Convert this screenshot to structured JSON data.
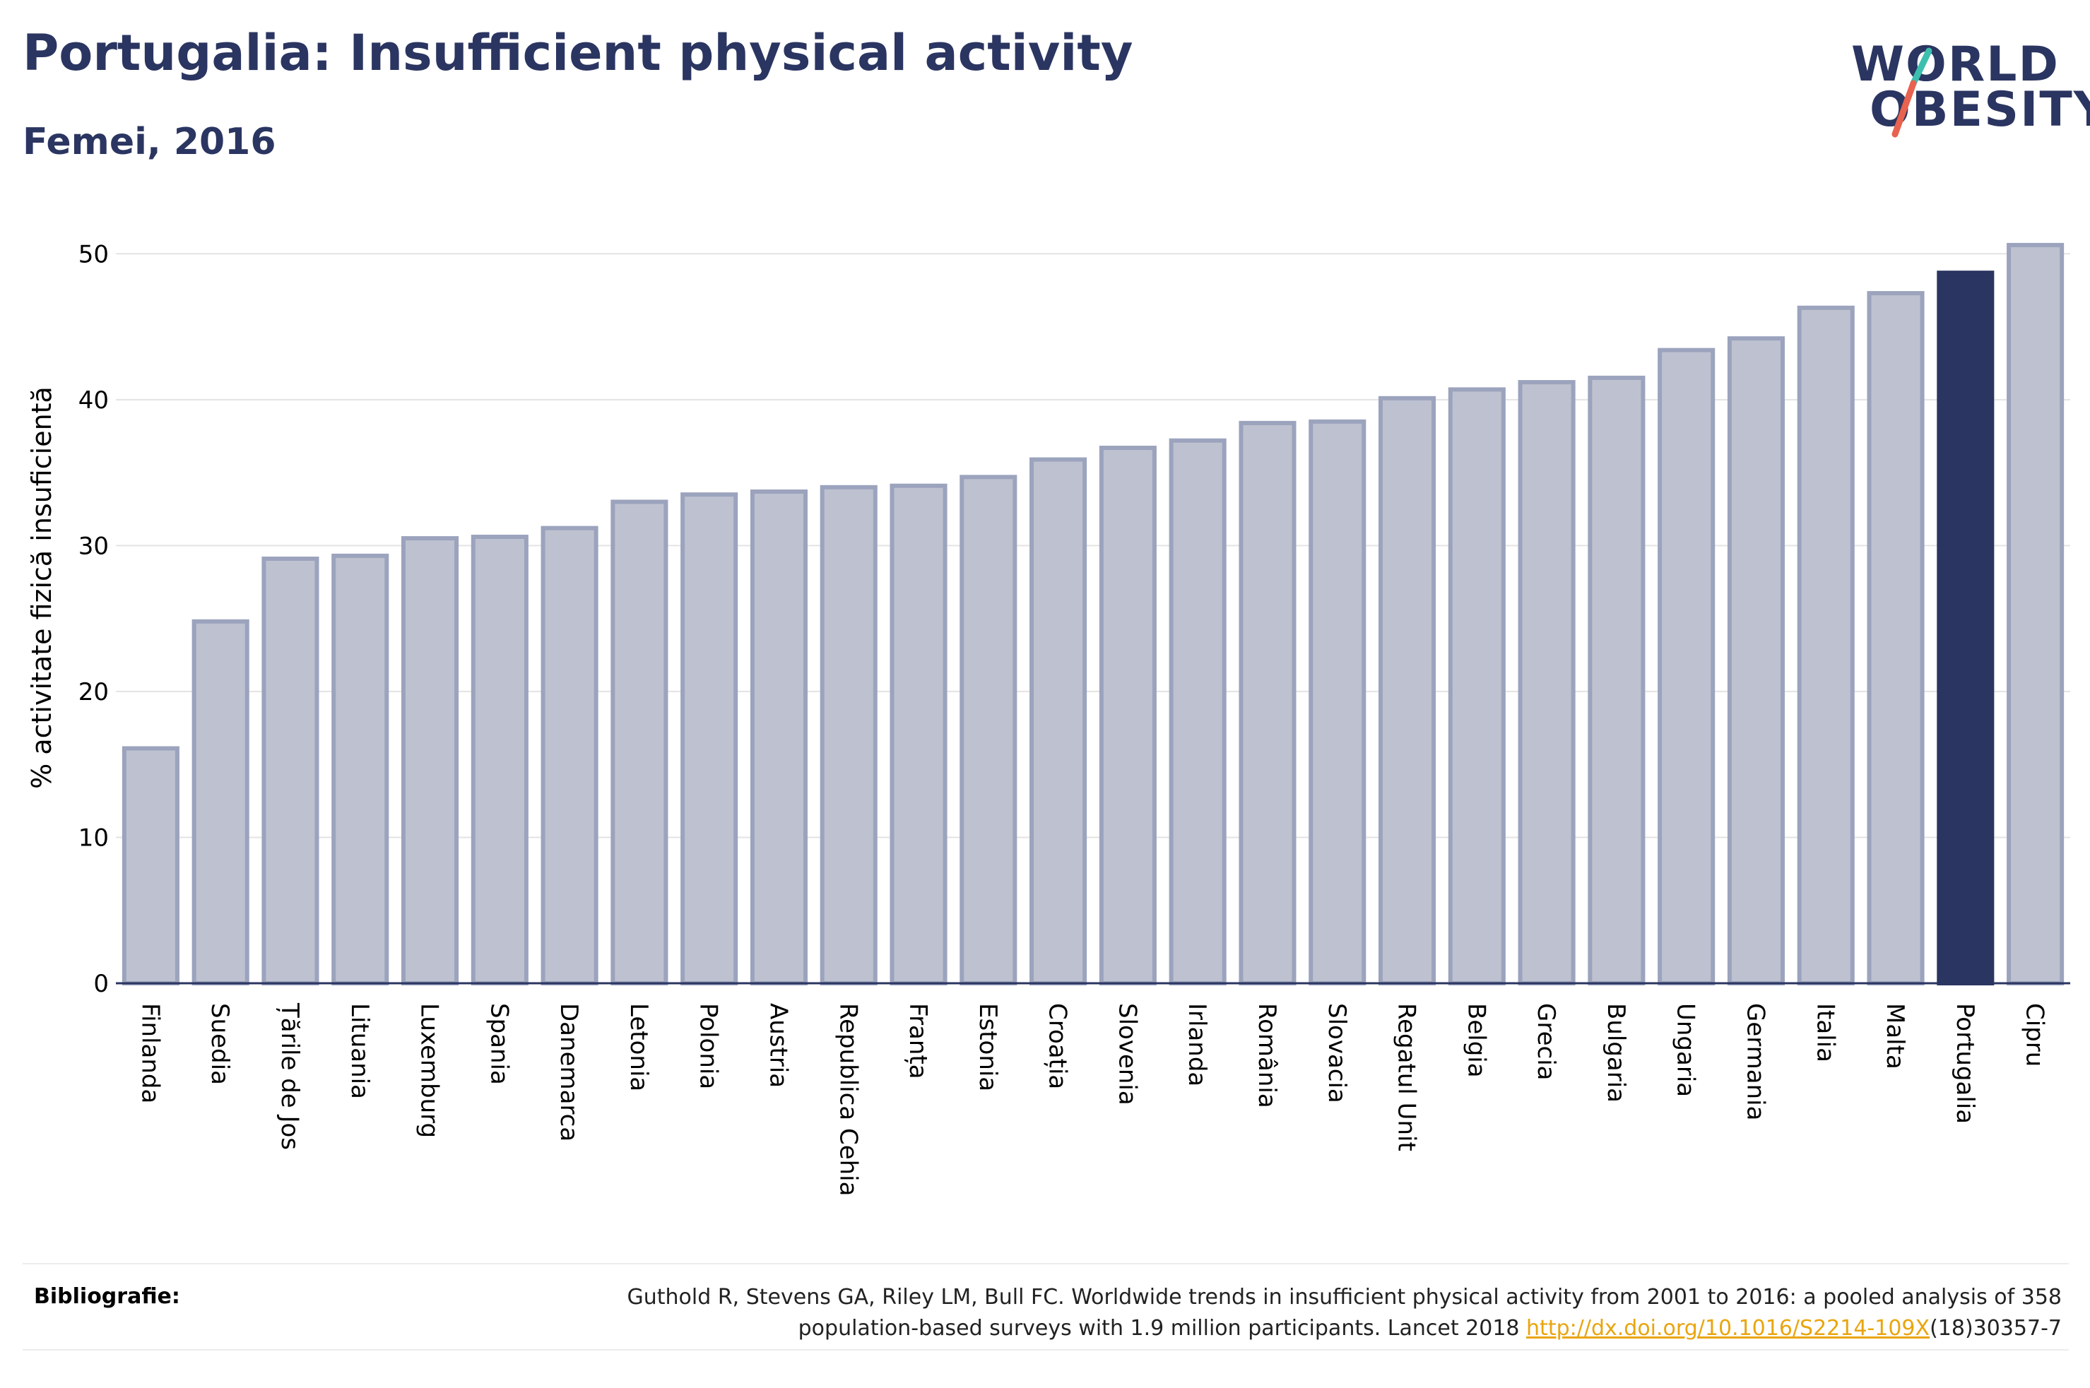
{
  "title": "Portugalia: Insufficient physical activity",
  "subtitle": "Femei, 2016",
  "logo": {
    "line1": "WORLD",
    "line2": "OBESITY",
    "accent_colors": [
      "#3cbfae",
      "#e8624f"
    ]
  },
  "chart_data": {
    "type": "bar",
    "ylabel": "% activitate fizică insuficientă",
    "xlabel": "",
    "ylim": [
      0,
      52
    ],
    "yticks": [
      0,
      10,
      20,
      30,
      40,
      50
    ],
    "grid": true,
    "categories": [
      "Finlanda",
      "Suedia",
      "Țările de Jos",
      "Lituania",
      "Luxemburg",
      "Spania",
      "Danemarca",
      "Letonia",
      "Polonia",
      "Austria",
      "Republica Cehia",
      "Franța",
      "Estonia",
      "Croația",
      "Slovenia",
      "Irlanda",
      "România",
      "Slovacia",
      "Regatul Unit",
      "Belgia",
      "Grecia",
      "Bulgaria",
      "Ungaria",
      "Germania",
      "Italia",
      "Malta",
      "Portugalia",
      "Cipru"
    ],
    "values": [
      16.1,
      24.8,
      29.1,
      29.3,
      30.5,
      30.6,
      31.2,
      33.0,
      33.5,
      33.7,
      34.0,
      34.1,
      34.7,
      35.9,
      36.7,
      37.2,
      38.4,
      38.5,
      40.1,
      40.7,
      41.2,
      41.5,
      43.4,
      44.2,
      46.3,
      47.3,
      48.7,
      50.6
    ],
    "highlight": "Portugalia",
    "colors": {
      "default_fill": "#bec2d0",
      "default_stroke": "#9ba3bd",
      "highlight": "#2b3561",
      "grid": "#e3e3e3",
      "axis": "#2b3561"
    }
  },
  "footer": {
    "label": "Bibliografie:",
    "text_line1": "Guthold R, Stevens GA, Riley LM, Bull FC. Worldwide trends in insufficient physical activity from 2001 to 2016: a pooled analysis of 358",
    "text_line2_before": "population-based surveys with 1.9 million participants. Lancet 2018 ",
    "link": "http://dx.doi.org/10.1016/S2214-109X",
    "text_line2_after": "(18)30357-7"
  }
}
